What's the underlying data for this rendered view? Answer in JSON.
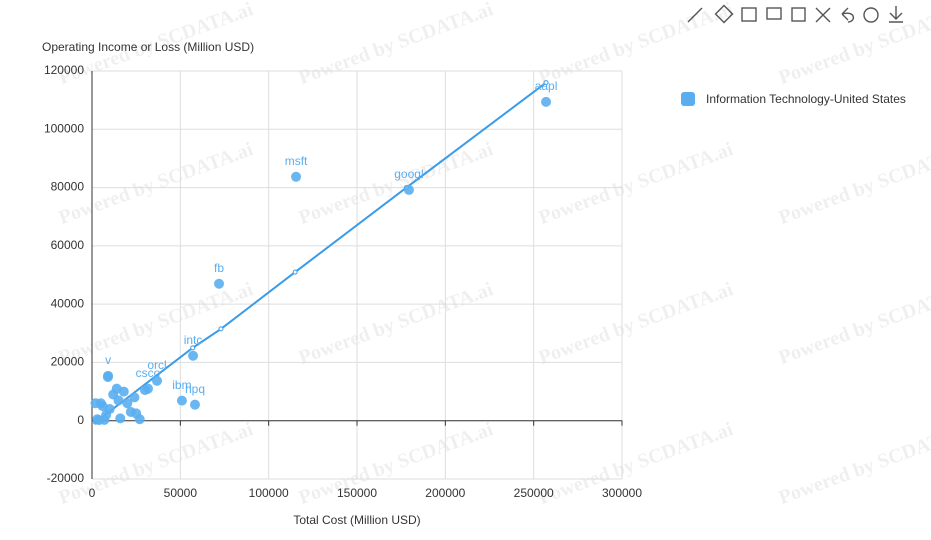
{
  "chart_data": {
    "type": "scatter",
    "y_label": "Operating Income or Loss (Million USD)",
    "x_label": "Total Cost (Million USD)",
    "watermark": "Powered by SCDATA.ai",
    "xlim": [
      0,
      300000
    ],
    "xticks": [
      0,
      50000,
      100000,
      150000,
      200000,
      250000,
      300000
    ],
    "ylim": [
      -20000,
      120000
    ],
    "yticks": [
      -20000,
      0,
      20000,
      40000,
      60000,
      80000,
      100000,
      120000
    ],
    "grid": true,
    "legend": "top-right",
    "series": [
      {
        "name": "Information Technology-United States",
        "color": "#5aaef0",
        "names": [
          "aapl",
          "msft",
          "googl",
          "fb",
          "intc",
          "csco",
          "orcl",
          "ibm",
          "hpq",
          "v",
          null,
          null,
          null,
          null,
          null,
          null,
          null,
          null,
          null,
          null,
          null,
          null,
          null,
          null,
          null,
          null,
          null,
          null,
          null,
          null
        ],
        "x": [
          257000,
          115500,
          179400,
          71900,
          57200,
          31700,
          36800,
          50900,
          58300,
          9100,
          6000,
          8000,
          3000,
          12000,
          15000,
          10000,
          18000,
          20000,
          22000,
          25000,
          27000,
          16000,
          5000,
          2000,
          14000,
          9000,
          30000,
          24000,
          4000,
          7000
        ],
        "y": [
          109400,
          83700,
          79200,
          47000,
          22300,
          11000,
          13700,
          6900,
          5500,
          15400,
          5000,
          2000,
          500,
          9000,
          7000,
          4000,
          10000,
          6000,
          3000,
          2500,
          500,
          800,
          6000,
          6000,
          11000,
          15000,
          10500,
          8000,
          200,
          300
        ]
      }
    ],
    "trendline": {
      "color": "#3a9be8",
      "x": [
        2000,
        57000,
        73000,
        115000,
        178000,
        257000
      ],
      "y": [
        -500,
        25000,
        31500,
        51000,
        80000,
        116000
      ]
    }
  }
}
